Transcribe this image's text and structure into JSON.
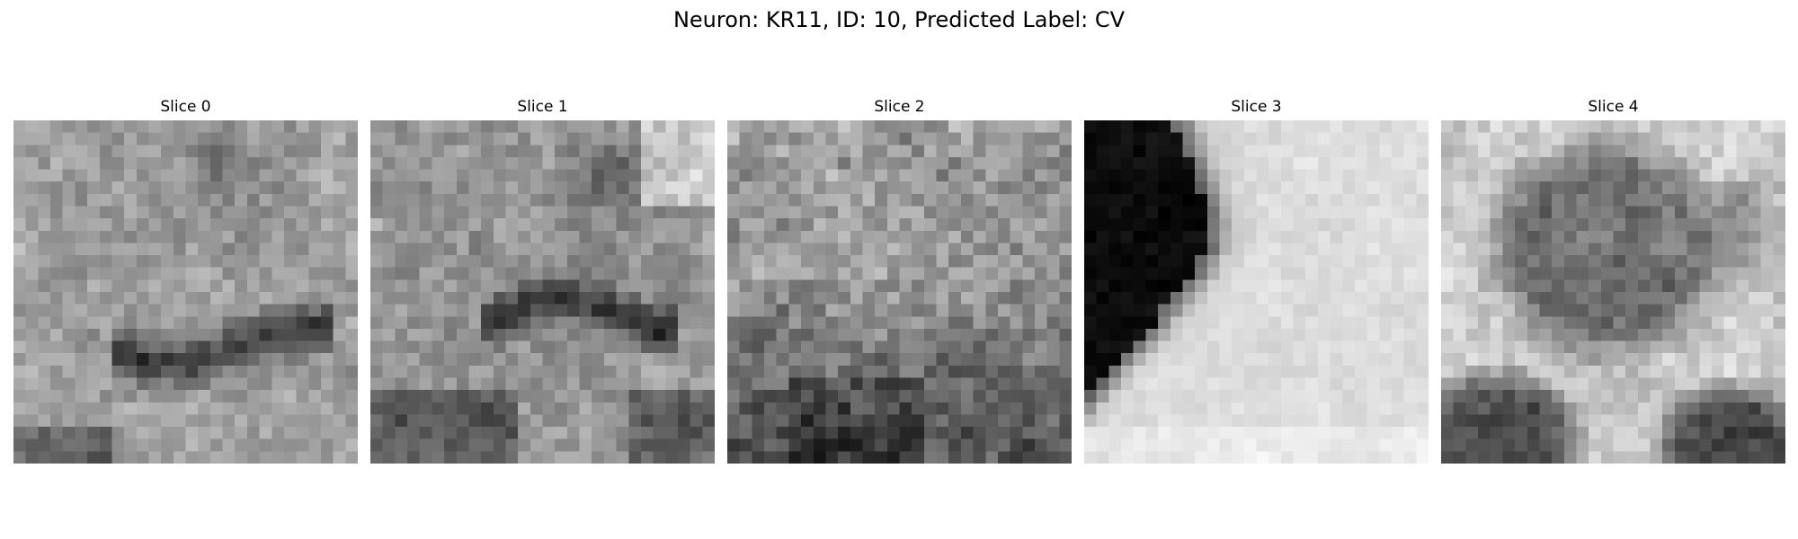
{
  "figure": {
    "title": "Neuron: KR11, ID: 10, Predicted Label: CV",
    "colormap": "grayscale"
  },
  "panels": [
    {
      "label": "Slice 0",
      "texture": "mottled gray with dark wavy band across lower-middle"
    },
    {
      "label": "Slice 1",
      "texture": "mottled gray with dark arch-shaped band, lighter region above"
    },
    {
      "label": "Slice 2",
      "texture": "noisy gray, darker lower half"
    },
    {
      "label": "Slice 3",
      "texture": "black region upper-left curving edge, light gray elsewhere"
    },
    {
      "label": "Slice 4",
      "texture": "dark round blob upper-middle, dark corners bottom-left and bottom-right"
    }
  ]
}
